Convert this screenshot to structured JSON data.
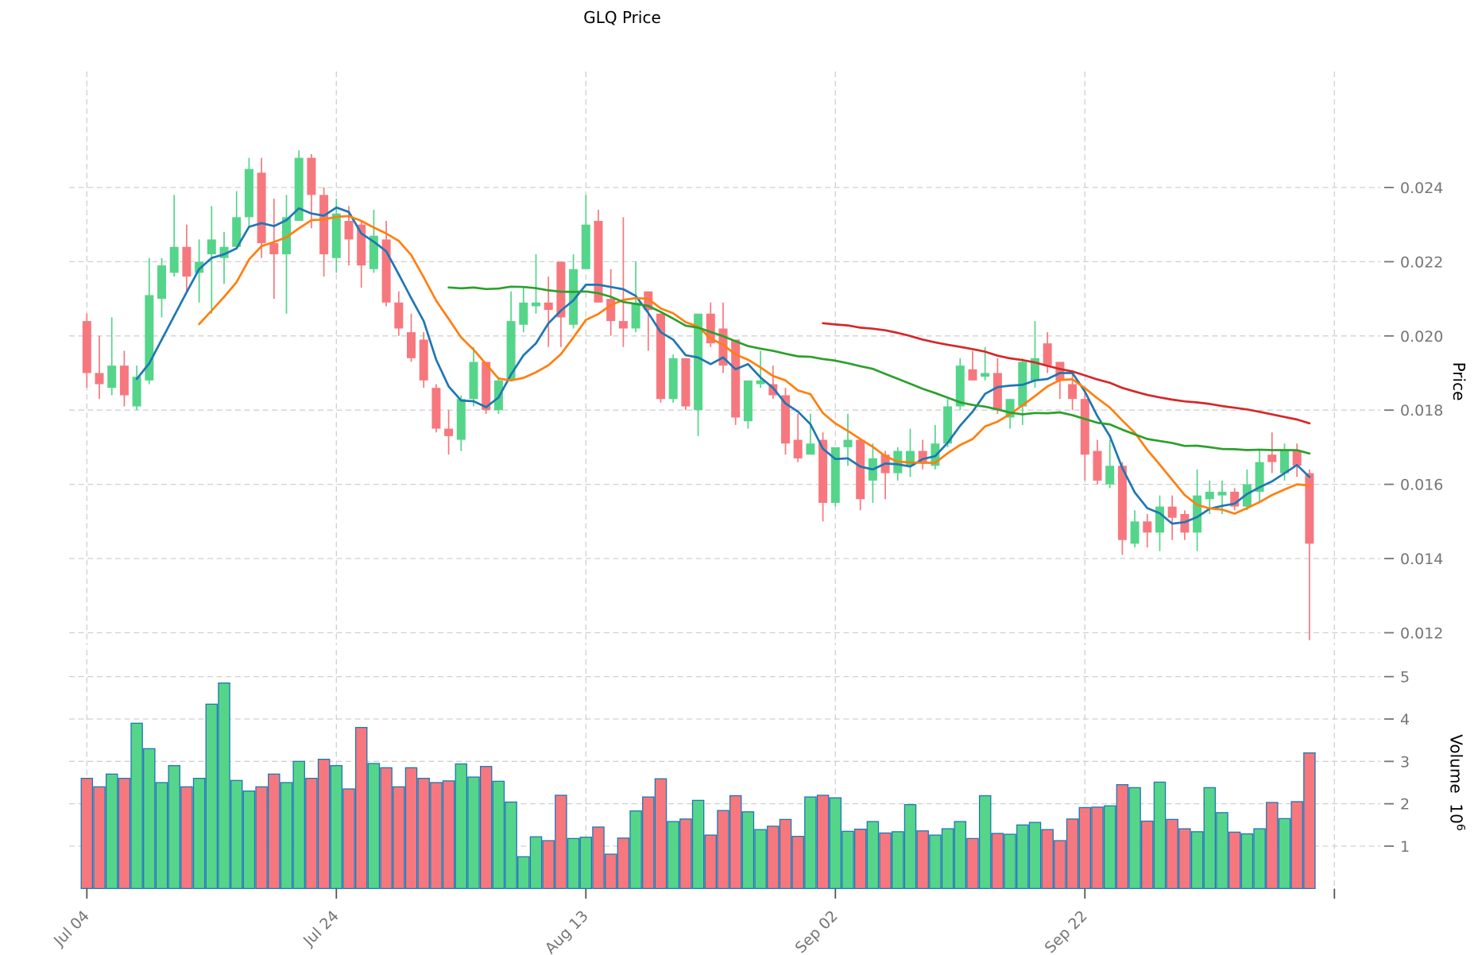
{
  "title": "GLQ Price",
  "axes": {
    "price_label": "Price",
    "volume_label": "Volume",
    "volume_unit_base": "10",
    "volume_unit_exp": "6",
    "x_tick_labels": [
      "Jul 04",
      "Jul 24",
      "Aug 13",
      "Sep 02",
      "Sep 22"
    ],
    "price_tick_values": [
      0.024,
      0.022,
      0.02,
      0.018,
      0.016,
      0.014,
      0.012
    ],
    "volume_tick_values": [
      5,
      4,
      3,
      2,
      1
    ]
  },
  "chart_data": {
    "type": "candlestick",
    "title": "GLQ Price",
    "ylabel": "Price",
    "ylabel2": "Volume 10^6",
    "x_tick_labels": [
      "Jul 04",
      "Jul 24",
      "Aug 13",
      "Sep 02",
      "Sep 22"
    ],
    "x_tick_indices": [
      0,
      20,
      40,
      60,
      80,
      100
    ],
    "price_ylim": [
      0.0112,
      0.0262
    ],
    "volume_ylim_millions": [
      0,
      7.5
    ],
    "grid": true,
    "legend_position": "none",
    "moving_average_windows": [
      5,
      10,
      30,
      60
    ],
    "ohlc": [
      [
        0.0204,
        0.0206,
        0.0186,
        0.019
      ],
      [
        0.019,
        0.02,
        0.0183,
        0.0187
      ],
      [
        0.0186,
        0.0205,
        0.0184,
        0.0192
      ],
      [
        0.0192,
        0.0196,
        0.0181,
        0.0184
      ],
      [
        0.0181,
        0.0192,
        0.018,
        0.0189
      ],
      [
        0.0188,
        0.0221,
        0.0187,
        0.0211
      ],
      [
        0.021,
        0.0221,
        0.0205,
        0.0219
      ],
      [
        0.0217,
        0.0238,
        0.0216,
        0.0224
      ],
      [
        0.0224,
        0.023,
        0.0212,
        0.0216
      ],
      [
        0.0217,
        0.0226,
        0.0209,
        0.022
      ],
      [
        0.0222,
        0.0235,
        0.0206,
        0.0226
      ],
      [
        0.0221,
        0.0228,
        0.0214,
        0.0224
      ],
      [
        0.0224,
        0.0239,
        0.0224,
        0.0232
      ],
      [
        0.0232,
        0.0248,
        0.0229,
        0.0245
      ],
      [
        0.0244,
        0.0248,
        0.0221,
        0.0225
      ],
      [
        0.0225,
        0.0237,
        0.021,
        0.0222
      ],
      [
        0.0222,
        0.0238,
        0.0206,
        0.0232
      ],
      [
        0.0231,
        0.025,
        0.0231,
        0.0248
      ],
      [
        0.0248,
        0.0249,
        0.0229,
        0.0238
      ],
      [
        0.0238,
        0.024,
        0.0216,
        0.0222
      ],
      [
        0.0221,
        0.0237,
        0.0217,
        0.0233
      ],
      [
        0.0231,
        0.0235,
        0.0219,
        0.0226
      ],
      [
        0.023,
        0.0231,
        0.0213,
        0.0219
      ],
      [
        0.0218,
        0.0234,
        0.0217,
        0.0227
      ],
      [
        0.0226,
        0.0231,
        0.0208,
        0.0209
      ],
      [
        0.0209,
        0.0212,
        0.02,
        0.0202
      ],
      [
        0.0201,
        0.0206,
        0.0193,
        0.0194
      ],
      [
        0.0199,
        0.0201,
        0.0186,
        0.0188
      ],
      [
        0.0186,
        0.0187,
        0.0174,
        0.0175
      ],
      [
        0.0175,
        0.018,
        0.0168,
        0.0173
      ],
      [
        0.0172,
        0.0184,
        0.0169,
        0.0183
      ],
      [
        0.0183,
        0.0197,
        0.0181,
        0.0193
      ],
      [
        0.0193,
        0.0193,
        0.0179,
        0.018
      ],
      [
        0.018,
        0.0189,
        0.0179,
        0.0188
      ],
      [
        0.0188,
        0.0212,
        0.0188,
        0.0204
      ],
      [
        0.0203,
        0.0213,
        0.0201,
        0.0209
      ],
      [
        0.0208,
        0.0222,
        0.0206,
        0.0209
      ],
      [
        0.0209,
        0.0216,
        0.0197,
        0.0207
      ],
      [
        0.022,
        0.022,
        0.0197,
        0.0205
      ],
      [
        0.0203,
        0.0222,
        0.0202,
        0.0218
      ],
      [
        0.0218,
        0.0238,
        0.0218,
        0.023
      ],
      [
        0.0231,
        0.0234,
        0.0209,
        0.0209
      ],
      [
        0.021,
        0.0218,
        0.02,
        0.0204
      ],
      [
        0.0204,
        0.0232,
        0.0197,
        0.0202
      ],
      [
        0.0202,
        0.022,
        0.0201,
        0.0209
      ],
      [
        0.0212,
        0.0212,
        0.0196,
        0.0207
      ],
      [
        0.0206,
        0.0206,
        0.0182,
        0.0183
      ],
      [
        0.0183,
        0.0195,
        0.0182,
        0.0194
      ],
      [
        0.0194,
        0.0194,
        0.018,
        0.0181
      ],
      [
        0.018,
        0.0206,
        0.0173,
        0.0206
      ],
      [
        0.0206,
        0.0209,
        0.0197,
        0.0198
      ],
      [
        0.0202,
        0.0209,
        0.019,
        0.0192
      ],
      [
        0.0199,
        0.0199,
        0.0176,
        0.0178
      ],
      [
        0.0177,
        0.0188,
        0.0175,
        0.0188
      ],
      [
        0.0187,
        0.0196,
        0.0186,
        0.0188
      ],
      [
        0.0187,
        0.0192,
        0.0183,
        0.0184
      ],
      [
        0.0184,
        0.0186,
        0.0168,
        0.0171
      ],
      [
        0.0172,
        0.0179,
        0.0166,
        0.0167
      ],
      [
        0.0168,
        0.0179,
        0.0168,
        0.0171
      ],
      [
        0.0172,
        0.0174,
        0.015,
        0.0155
      ],
      [
        0.0155,
        0.017,
        0.0154,
        0.017
      ],
      [
        0.017,
        0.0179,
        0.0165,
        0.0172
      ],
      [
        0.0172,
        0.0172,
        0.0153,
        0.0156
      ],
      [
        0.0161,
        0.0171,
        0.0155,
        0.0167
      ],
      [
        0.0168,
        0.0169,
        0.0156,
        0.0163
      ],
      [
        0.0163,
        0.017,
        0.0161,
        0.0169
      ],
      [
        0.0165,
        0.0175,
        0.0162,
        0.0169
      ],
      [
        0.0169,
        0.0172,
        0.0164,
        0.0166
      ],
      [
        0.0165,
        0.0176,
        0.0164,
        0.0171
      ],
      [
        0.0171,
        0.0183,
        0.017,
        0.0181
      ],
      [
        0.0181,
        0.0194,
        0.018,
        0.0192
      ],
      [
        0.0191,
        0.0196,
        0.0188,
        0.0188
      ],
      [
        0.0189,
        0.0197,
        0.0188,
        0.019
      ],
      [
        0.019,
        0.0194,
        0.0179,
        0.018
      ],
      [
        0.0178,
        0.0183,
        0.0175,
        0.0183
      ],
      [
        0.0181,
        0.0194,
        0.0176,
        0.0193
      ],
      [
        0.0188,
        0.0204,
        0.0186,
        0.0194
      ],
      [
        0.0198,
        0.0201,
        0.019,
        0.0192
      ],
      [
        0.0193,
        0.0193,
        0.0183,
        0.0188
      ],
      [
        0.0187,
        0.019,
        0.018,
        0.0183
      ],
      [
        0.0183,
        0.0185,
        0.0161,
        0.0168
      ],
      [
        0.0169,
        0.0172,
        0.016,
        0.0161
      ],
      [
        0.016,
        0.0172,
        0.0159,
        0.0165
      ],
      [
        0.0165,
        0.0166,
        0.0141,
        0.0145
      ],
      [
        0.0144,
        0.0153,
        0.0143,
        0.015
      ],
      [
        0.015,
        0.0152,
        0.0143,
        0.0147
      ],
      [
        0.0147,
        0.0157,
        0.0142,
        0.0154
      ],
      [
        0.0154,
        0.0157,
        0.0145,
        0.0151
      ],
      [
        0.0152,
        0.0153,
        0.0145,
        0.0147
      ],
      [
        0.0147,
        0.0164,
        0.0142,
        0.0157
      ],
      [
        0.0156,
        0.0161,
        0.0152,
        0.0158
      ],
      [
        0.0157,
        0.0161,
        0.0152,
        0.0158
      ],
      [
        0.0158,
        0.0159,
        0.0153,
        0.0154
      ],
      [
        0.0154,
        0.0164,
        0.0153,
        0.016
      ],
      [
        0.0158,
        0.0169,
        0.0155,
        0.0166
      ],
      [
        0.0168,
        0.0174,
        0.0163,
        0.0166
      ],
      [
        0.0163,
        0.0171,
        0.0161,
        0.0169
      ],
      [
        0.0169,
        0.0171,
        0.0162,
        0.0165
      ],
      [
        0.0163,
        0.0164,
        0.0118,
        0.0144
      ]
    ],
    "volume_millions": [
      2.6,
      2.4,
      2.7,
      2.6,
      3.9,
      3.3,
      2.5,
      2.9,
      2.4,
      2.6,
      4.35,
      4.85,
      2.55,
      2.3,
      2.4,
      2.7,
      2.5,
      3.0,
      2.6,
      3.05,
      2.9,
      2.35,
      3.8,
      2.95,
      2.85,
      2.4,
      2.85,
      2.6,
      2.5,
      2.54,
      2.94,
      2.63,
      2.88,
      2.53,
      2.04,
      0.75,
      1.22,
      1.13,
      2.2,
      1.18,
      1.21,
      1.45,
      0.81,
      1.19,
      1.83,
      2.16,
      2.59,
      1.58,
      1.64,
      2.08,
      1.26,
      1.84,
      2.19,
      1.81,
      1.39,
      1.47,
      1.63,
      1.23,
      2.16,
      2.2,
      2.14,
      1.35,
      1.4,
      1.58,
      1.31,
      1.34,
      1.98,
      1.36,
      1.26,
      1.41,
      1.58,
      1.18,
      2.19,
      1.3,
      1.28,
      1.5,
      1.56,
      1.39,
      1.13,
      1.64,
      1.91,
      1.92,
      1.95,
      2.45,
      2.38,
      1.59,
      2.51,
      1.63,
      1.41,
      1.34,
      2.38,
      1.79,
      1.33,
      1.29,
      1.41,
      2.03,
      1.65,
      2.05,
      3.2
    ],
    "colors": {
      "up": "#55d58a",
      "down": "#f6787e",
      "volume_edge": "#1f77b4",
      "ma_colors": [
        "#1f77b4",
        "#ff7f0e",
        "#2ca02c",
        "#d62728"
      ],
      "grid": "#d0d0d0",
      "tick_text": "#757575"
    }
  }
}
